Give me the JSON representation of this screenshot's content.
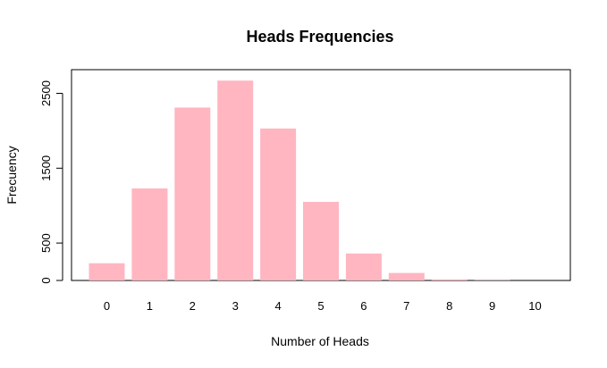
{
  "chart_data": {
    "type": "bar",
    "title": "Heads Frequencies",
    "xlabel": "Number of Heads",
    "ylabel": "Frecuency",
    "categories": [
      "0",
      "1",
      "2",
      "3",
      "4",
      "5",
      "6",
      "7",
      "8",
      "9",
      "10"
    ],
    "values": [
      230,
      1230,
      2310,
      2670,
      2030,
      1050,
      360,
      100,
      15,
      3,
      0
    ],
    "yticks": [
      0,
      500,
      1500,
      2500
    ],
    "ytick_labels": [
      "0",
      "500",
      "1500",
      "2500"
    ],
    "ylim": [
      0,
      2800
    ],
    "bar_color": "#ffb6c1",
    "grid": false,
    "legend": "none"
  }
}
